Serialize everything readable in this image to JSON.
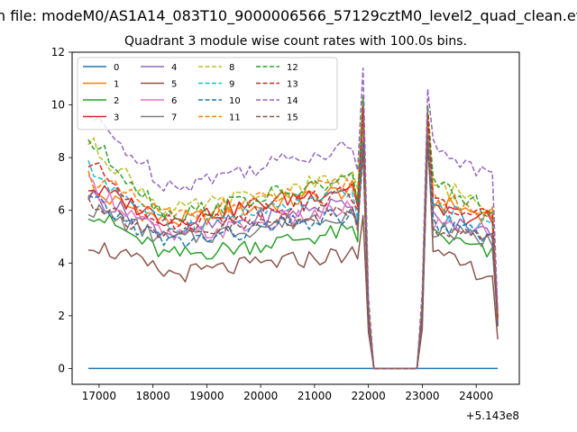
{
  "figure": {
    "suptitle": "n file: modeM0/AS1A14_083T10_9000006566_57129cztM0_level2_quad_clean.evt",
    "offset_label": "+5.143e8"
  },
  "chart_data": {
    "type": "line",
    "title": "Quadrant 3 module wise count rates with 100.0s bins.",
    "xlabel": "",
    "ylabel": "",
    "x_offset": 514300000,
    "xlim": [
      16500,
      24800
    ],
    "ylim": [
      -0.6,
      12
    ],
    "grid": false,
    "legend_position": "top-left",
    "legend_columns": 4,
    "x_ticks": [
      17000,
      18000,
      19000,
      20000,
      21000,
      22000,
      23000,
      24000
    ],
    "x_tick_labels": [
      "17000",
      "18000",
      "19000",
      "20000",
      "21000",
      "22000",
      "23000",
      "24000"
    ],
    "y_ticks": [
      0,
      2,
      4,
      6,
      8,
      10,
      12
    ],
    "y_tick_labels": [
      "0",
      "2",
      "4",
      "6",
      "8",
      "10",
      "12"
    ],
    "x_range": {
      "start": 16800,
      "end": 24400,
      "step": 100
    },
    "gap": {
      "start": 22100,
      "end": 22900
    },
    "series": [
      {
        "name": "0",
        "color": "#1f77b4",
        "dash": "solid",
        "first": 0,
        "base": 0,
        "peak1": 0,
        "post": 0,
        "peak2": 0,
        "trail": 0,
        "last": 0
      },
      {
        "name": "1",
        "color": "#ff7f0e",
        "dash": "solid",
        "first": 6.7,
        "base": 5.6,
        "peak1": 9.2,
        "post": 6.3,
        "peak2": 9.3,
        "trail": 5.8,
        "last": 1.6
      },
      {
        "name": "2",
        "color": "#2ca02c",
        "dash": "solid",
        "first": 6.0,
        "base": 4.3,
        "peak1": 10.2,
        "post": 5.1,
        "peak2": 9.0,
        "trail": 4.3,
        "last": 1.9
      },
      {
        "name": "3",
        "color": "#d62728",
        "dash": "solid",
        "first": 6.9,
        "base": 5.7,
        "peak1": 9.8,
        "post": 6.0,
        "peak2": 9.5,
        "trail": 5.6,
        "last": 2.0
      },
      {
        "name": "4",
        "color": "#9467bd",
        "dash": "solid",
        "first": 6.6,
        "base": 5.2,
        "peak1": 9.0,
        "post": 5.7,
        "peak2": 8.8,
        "trail": 5.1,
        "last": 1.8
      },
      {
        "name": "5",
        "color": "#8c564b",
        "dash": "solid",
        "first": 4.8,
        "base": 3.6,
        "peak1": 5.8,
        "post": 4.3,
        "peak2": 9.2,
        "trail": 3.5,
        "last": 1.1
      },
      {
        "name": "6",
        "color": "#e377c2",
        "dash": "solid",
        "first": 7.0,
        "base": 5.0,
        "peak1": 8.8,
        "post": 5.5,
        "peak2": 9.0,
        "trail": 5.2,
        "last": 1.7
      },
      {
        "name": "7",
        "color": "#7f7f7f",
        "dash": "solid",
        "first": 6.1,
        "base": 4.9,
        "peak1": 8.4,
        "post": 5.3,
        "peak2": 8.6,
        "trail": 4.8,
        "last": 1.6
      },
      {
        "name": "8",
        "color": "#bcbd22",
        "dash": "dashed",
        "first": 8.6,
        "base": 6.0,
        "peak1": 10.4,
        "post": 7.0,
        "peak2": 10.0,
        "trail": 6.2,
        "last": 2.0
      },
      {
        "name": "9",
        "color": "#17becf",
        "dash": "dashed",
        "first": 7.6,
        "base": 5.4,
        "peak1": 9.5,
        "post": 6.1,
        "peak2": 9.4,
        "trail": 5.3,
        "last": 1.8
      },
      {
        "name": "10",
        "color": "#1f77b4",
        "dash": "dashed",
        "first": 6.4,
        "base": 4.8,
        "peak1": 8.6,
        "post": 5.5,
        "peak2": 8.8,
        "trail": 4.9,
        "last": 1.6
      },
      {
        "name": "11",
        "color": "#ff7f0e",
        "dash": "dashed",
        "first": 7.3,
        "base": 5.8,
        "peak1": 9.6,
        "post": 6.6,
        "peak2": 9.6,
        "trail": 5.8,
        "last": 1.9
      },
      {
        "name": "12",
        "color": "#2ca02c",
        "dash": "dashed",
        "first": 8.7,
        "base": 5.9,
        "peak1": 10.3,
        "post": 6.9,
        "peak2": 9.9,
        "trail": 6.0,
        "last": 2.0
      },
      {
        "name": "13",
        "color": "#d62728",
        "dash": "dashed",
        "first": 7.8,
        "base": 5.5,
        "peak1": 9.9,
        "post": 6.3,
        "peak2": 9.7,
        "trail": 5.6,
        "last": 1.9
      },
      {
        "name": "14",
        "color": "#9467bd",
        "dash": "dashed",
        "first": 9.6,
        "base": 7.0,
        "peak1": 11.4,
        "post": 8.5,
        "peak2": 10.6,
        "trail": 7.2,
        "last": 2.2
      },
      {
        "name": "15",
        "color": "#8c564b",
        "dash": "dashed",
        "first": 6.4,
        "base": 5.0,
        "peak1": 8.2,
        "post": 5.4,
        "peak2": 8.5,
        "trail": 4.9,
        "last": 1.6
      }
    ]
  }
}
